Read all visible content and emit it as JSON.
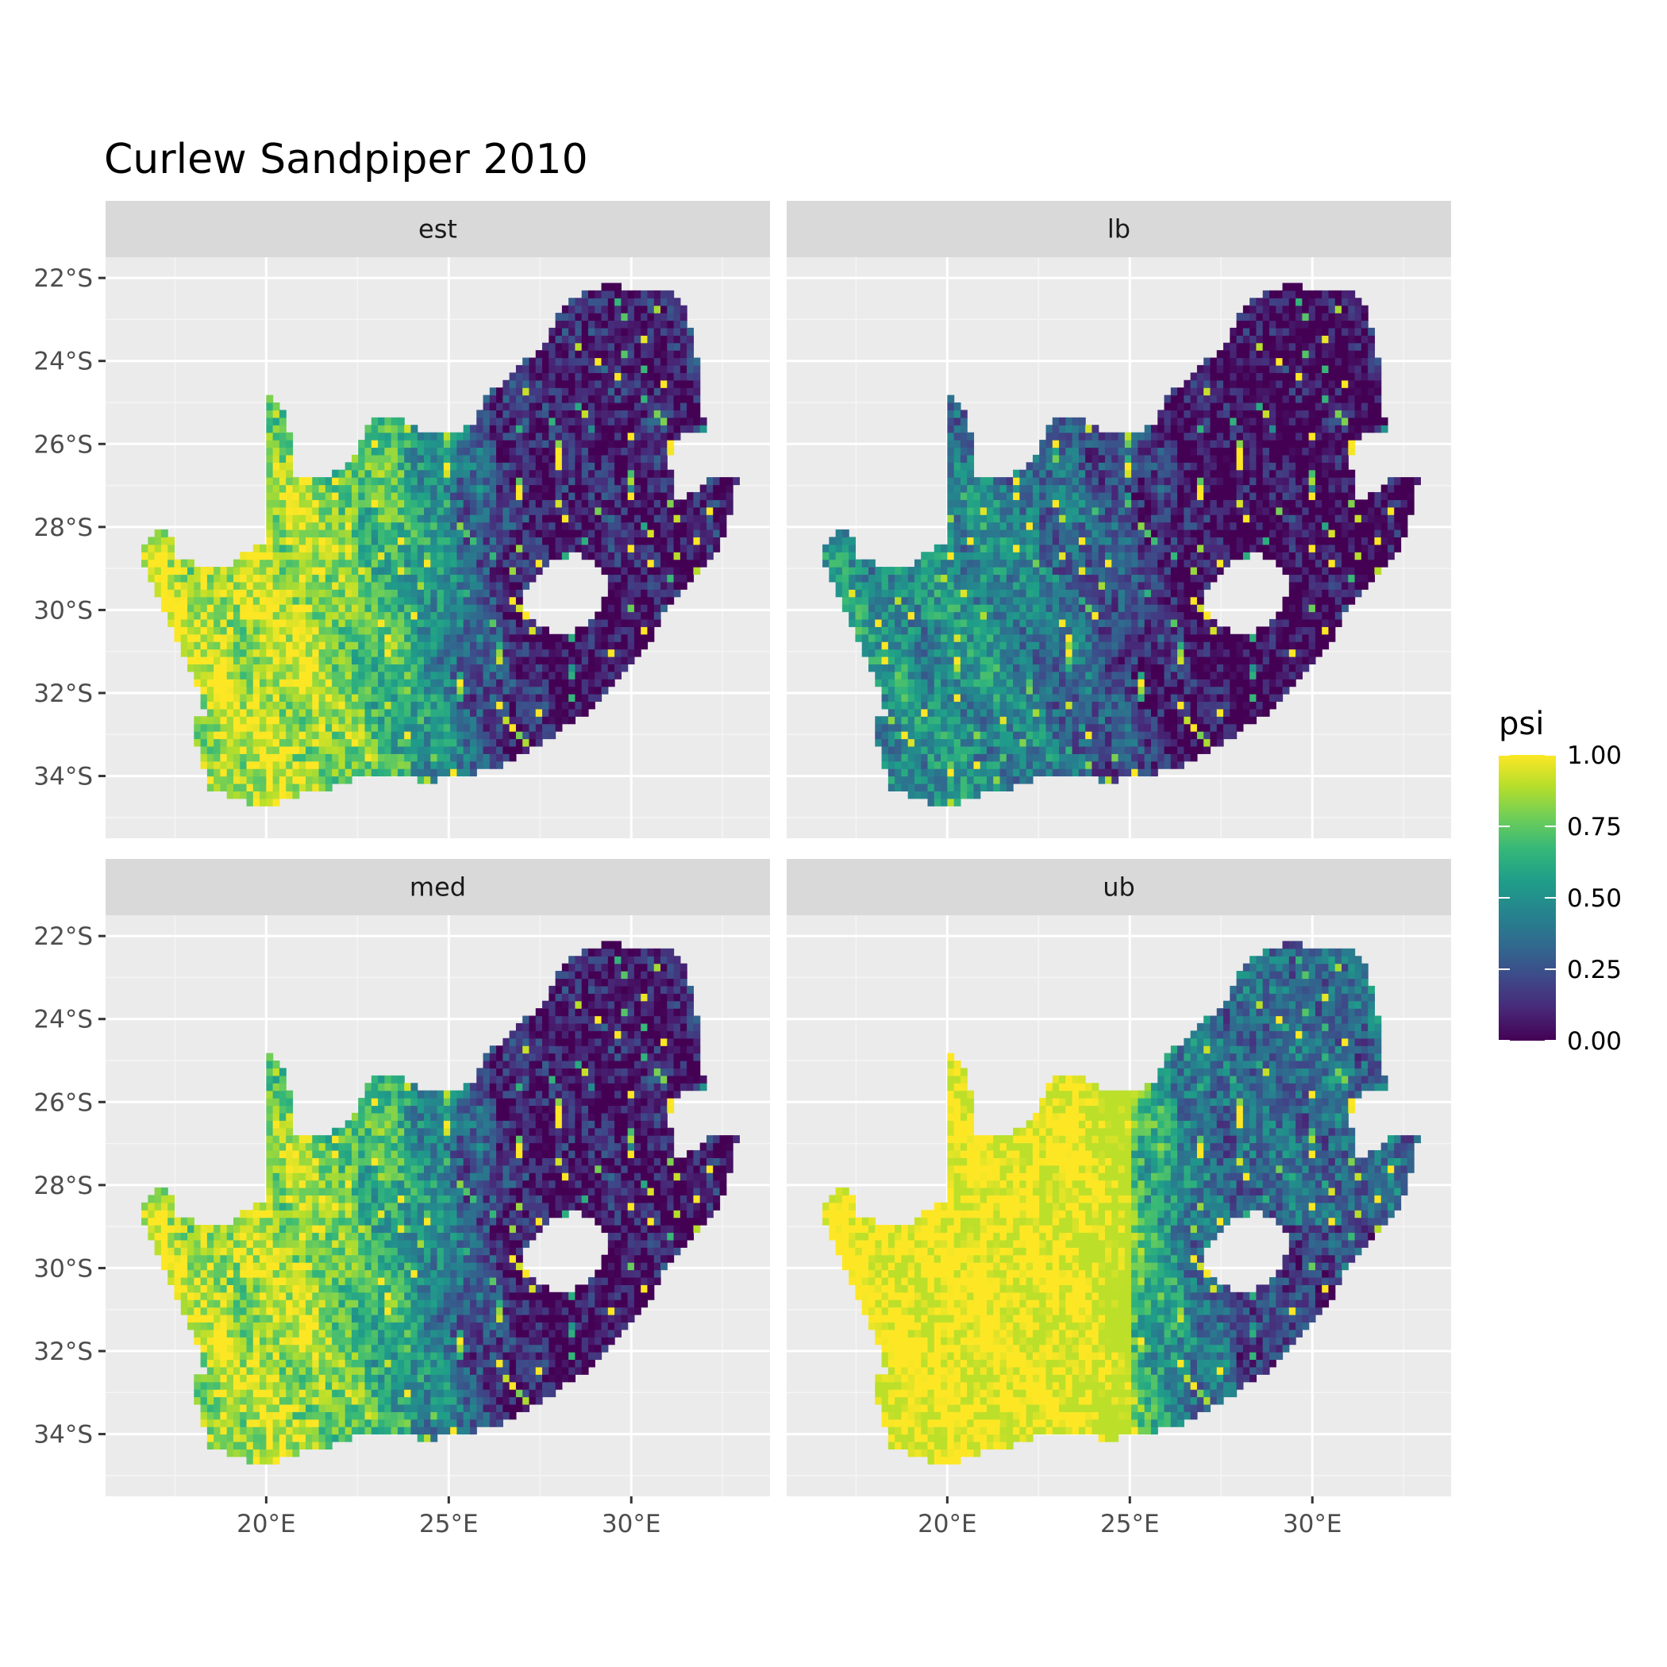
{
  "chart_data": {
    "type": "heatmap",
    "title": "Curlew Sandpiper 2010",
    "xlabel": "",
    "ylabel": "",
    "xlim": [
      15.6,
      33.8
    ],
    "ylim": [
      -35.5,
      -21.5
    ],
    "x_ticks": [
      {
        "value": 20,
        "label": "20°E"
      },
      {
        "value": 25,
        "label": "25°E"
      },
      {
        "value": 30,
        "label": "30°E"
      }
    ],
    "y_ticks": [
      {
        "value": -22,
        "label": "22°S"
      },
      {
        "value": -24,
        "label": "24°S"
      },
      {
        "value": -26,
        "label": "26°S"
      },
      {
        "value": -28,
        "label": "28°S"
      },
      {
        "value": -30,
        "label": "30°S"
      },
      {
        "value": -32,
        "label": "32°S"
      },
      {
        "value": -34,
        "label": "34°S"
      }
    ],
    "grid": true,
    "facets": [
      {
        "name": "est",
        "mean_psi": 0.45
      },
      {
        "name": "lb",
        "mean_psi": 0.2
      },
      {
        "name": "med",
        "mean_psi": 0.42
      },
      {
        "name": "ub",
        "mean_psi": 0.72
      }
    ],
    "regions": {
      "west_arid": {
        "est": 0.9,
        "lb": 0.5,
        "med": 0.88,
        "ub": 1.0
      },
      "northern_cape": {
        "est": 0.7,
        "lb": 0.25,
        "med": 0.68,
        "ub": 1.0
      },
      "central_interior": {
        "est": 0.6,
        "lb": 0.3,
        "med": 0.55,
        "ub": 0.95
      },
      "north_east": {
        "est": 0.1,
        "lb": 0.03,
        "med": 0.08,
        "ub": 0.35
      },
      "east_coast": {
        "est": 0.05,
        "lb": 0.02,
        "med": 0.05,
        "ub": 0.2
      }
    },
    "legend": {
      "title": "psi",
      "placement": "right",
      "breaks": [
        {
          "value": 0.0,
          "label": "0.00"
        },
        {
          "value": 0.25,
          "label": "0.25"
        },
        {
          "value": 0.5,
          "label": "0.50"
        },
        {
          "value": 0.75,
          "label": "0.75"
        },
        {
          "value": 1.0,
          "label": "1.00"
        }
      ],
      "colors": [
        "#440154",
        "#482878",
        "#3e4989",
        "#31688e",
        "#26828e",
        "#1f9e89",
        "#35b779",
        "#6ece58",
        "#b5de2b",
        "#fde725"
      ]
    }
  }
}
